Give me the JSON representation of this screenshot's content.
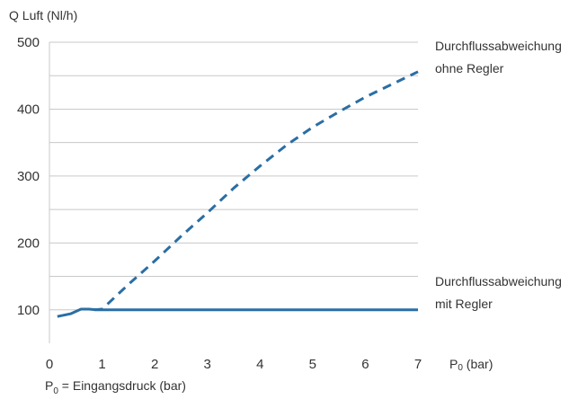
{
  "chart_data": {
    "type": "line",
    "ylabel": "Q Luft (Nl/h)",
    "xlabel_main": "P",
    "xlabel_sub": "0",
    "xlabel_unit": " (bar)",
    "note_main": "P",
    "note_sub": "0",
    "note_rest": " = Eingangsdruck (bar)",
    "xlim": [
      0,
      7
    ],
    "ylim": [
      50,
      500
    ],
    "grid": true,
    "x_ticks": [
      0,
      1,
      2,
      3,
      4,
      5,
      6,
      7
    ],
    "y_ticks": [
      100,
      200,
      300,
      400,
      500
    ],
    "y_gridlines": [
      100,
      150,
      200,
      250,
      300,
      350,
      400,
      450,
      500
    ],
    "series": [
      {
        "style": "dashed",
        "color": "#2a6ea4",
        "label_lines": [
          "Durchflussabweichung",
          "ohne Regler"
        ],
        "points": [
          [
            0.85,
            100
          ],
          [
            1.0,
            101
          ],
          [
            1.5,
            138
          ],
          [
            2.0,
            173
          ],
          [
            2.5,
            210
          ],
          [
            3.0,
            245
          ],
          [
            3.5,
            282
          ],
          [
            4.0,
            315
          ],
          [
            4.5,
            346
          ],
          [
            5.0,
            373
          ],
          [
            5.5,
            396
          ],
          [
            6.0,
            418
          ],
          [
            6.5,
            437
          ],
          [
            7.0,
            456
          ]
        ]
      },
      {
        "style": "solid",
        "color": "#2a6ea4",
        "label_lines": [
          "Durchflussabweichung",
          "mit Regler"
        ],
        "points": [
          [
            0.15,
            90
          ],
          [
            0.4,
            94
          ],
          [
            0.6,
            101
          ],
          [
            0.75,
            101
          ],
          [
            0.9,
            100
          ],
          [
            7.0,
            100
          ]
        ]
      }
    ]
  }
}
